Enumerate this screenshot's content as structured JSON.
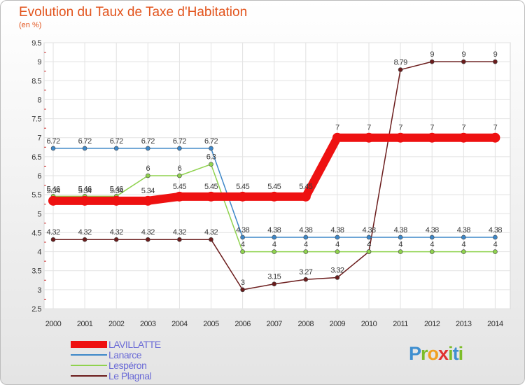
{
  "title": "Evolution du Taux de Taxe d'Habitation",
  "subtitle": "(en %)",
  "logo": {
    "text": "Proxiti",
    "colors": [
      "#3f8fd0",
      "#7dbd29",
      "#f0a020",
      "#e03030"
    ]
  },
  "chart_data": {
    "type": "line",
    "title": "Evolution du Taux de Taxe d'Habitation",
    "ylabel": "(en %)",
    "xlabel": "",
    "x": [
      "2000",
      "2001",
      "2002",
      "2003",
      "2004",
      "2005",
      "2006",
      "2007",
      "2008",
      "2009",
      "2010",
      "2011",
      "2012",
      "2013",
      "2014"
    ],
    "ylim": [
      2.5,
      9.5
    ],
    "yticks": [
      "2.5",
      "3",
      "3.5",
      "4",
      "4.5",
      "5",
      "5.5",
      "6",
      "6.5",
      "7",
      "7.5",
      "8",
      "8.5",
      "9",
      "9.5"
    ],
    "legend_position": "bottom-left",
    "series": [
      {
        "name": "LAVILLATTE",
        "color": "#ee1111",
        "values": [
          5.34,
          5.34,
          5.34,
          5.34,
          5.45,
          5.45,
          5.45,
          5.45,
          5.45,
          7,
          7,
          7,
          7,
          7,
          7
        ],
        "labels": [
          "5.34",
          "5.34",
          "5.34",
          "5.34",
          "5.45",
          "5.45",
          "5.45",
          "5.45",
          "5.45",
          "7",
          "7",
          "7",
          "7",
          "7",
          "7"
        ]
      },
      {
        "name": "Lanarce",
        "color": "#3d87c8",
        "values": [
          6.72,
          6.72,
          6.72,
          6.72,
          6.72,
          6.72,
          4.38,
          4.38,
          4.38,
          4.38,
          4.38,
          4.38,
          4.38,
          4.38,
          4.38
        ],
        "labels": [
          "6.72",
          "6.72",
          "6.72",
          "6.72",
          "6.72",
          "6.72",
          "4.38",
          "4.38",
          "4.38",
          "4.38",
          "4.38",
          "4.38",
          "4.38",
          "4.38",
          "4.38"
        ]
      },
      {
        "name": "Lespéron",
        "color": "#8fd24e",
        "values": [
          5.46,
          5.46,
          5.46,
          6,
          6,
          6.3,
          4,
          4,
          4,
          4,
          4,
          4,
          4,
          4,
          4
        ],
        "labels": [
          "5.46",
          "5.46",
          "5.46",
          "6",
          "6",
          "6.3",
          "4",
          "4",
          "4",
          "4",
          "4",
          "4",
          "4",
          "4",
          "4"
        ]
      },
      {
        "name": "Le Plagnal",
        "color": "#6b1c1c",
        "values": [
          4.32,
          4.32,
          4.32,
          4.32,
          4.32,
          4.32,
          3,
          3.15,
          3.27,
          3.32,
          4,
          8.79,
          9,
          9,
          9
        ],
        "labels": [
          "4.32",
          "4.32",
          "4.32",
          "4.32",
          "4.32",
          "4.32",
          "3",
          "3.15",
          "3.27",
          "3.32",
          "4",
          "8.79",
          "9",
          "9",
          "9"
        ]
      }
    ]
  }
}
